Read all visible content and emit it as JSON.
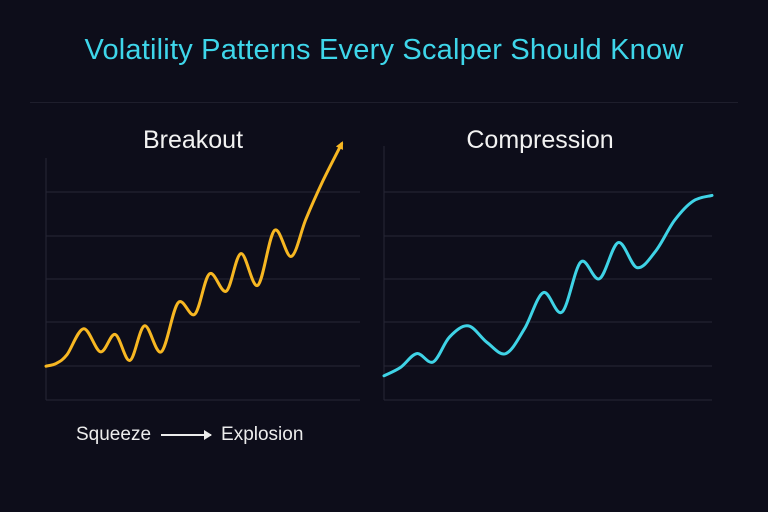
{
  "title": "Volatility Patterns Every Scalper Should Know",
  "annotation": {
    "from": "Squeeze",
    "to": "Explosion"
  },
  "colors": {
    "background": "#0d0d1a",
    "title": "#3ed6ea",
    "breakout_line": "#f7b722",
    "compression_line": "#3fd3e6",
    "grid": "#262636"
  },
  "chart_data": [
    {
      "type": "line",
      "title": "Breakout",
      "arrow_at_end": true,
      "grid": true,
      "axis_labels_shown": false,
      "series": [
        {
          "x": [
            0,
            0.5,
            1.0,
            1.8,
            2.6,
            3.3,
            4.0,
            4.7,
            5.5,
            6.3,
            7.1,
            7.8,
            8.6,
            9.3,
            10.1,
            10.9,
            11.7,
            12.4,
            13.2,
            14.1
          ],
          "values": [
            1.1,
            1.2,
            1.5,
            2.4,
            1.6,
            2.2,
            1.3,
            2.5,
            1.6,
            3.3,
            2.9,
            4.3,
            3.7,
            5.0,
            3.9,
            5.8,
            4.9,
            6.2,
            7.5,
            8.8
          ]
        }
      ],
      "ylim": [
        0,
        9
      ],
      "xlim": [
        0,
        14.5
      ]
    },
    {
      "type": "line",
      "title": "Compression",
      "arrow_at_end": false,
      "grid": true,
      "axis_labels_shown": false,
      "series": [
        {
          "x": [
            0,
            0.7,
            1.4,
            2.1,
            2.8,
            3.6,
            4.4,
            5.2,
            6.0,
            6.8,
            7.6,
            8.4,
            9.2,
            10.0,
            10.8,
            11.6,
            12.4,
            13.2,
            14.0
          ],
          "values": [
            0.8,
            1.1,
            1.6,
            1.3,
            2.2,
            2.6,
            2.0,
            1.6,
            2.5,
            3.8,
            3.1,
            4.9,
            4.3,
            5.6,
            4.7,
            5.3,
            6.4,
            7.1,
            7.3
          ]
        }
      ],
      "ylim": [
        0,
        8
      ],
      "xlim": [
        0,
        14
      ]
    }
  ]
}
